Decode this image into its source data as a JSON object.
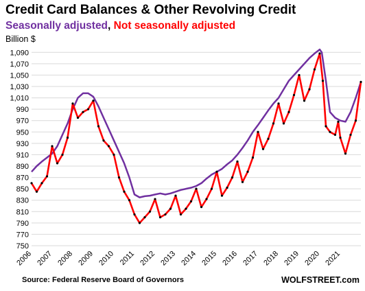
{
  "chart_data": {
    "type": "line",
    "title": "Credit Card Balances & Other Revolving Credit",
    "subtitle_parts": [
      {
        "text": "Seasonally adjusted",
        "color": "#7030a0"
      },
      {
        "text": ", ",
        "color": "#000000"
      },
      {
        "text": "Not seasonally adjusted",
        "color": "#ff0000"
      }
    ],
    "ylabel": "Billion $",
    "source": "Source: Federal Reserve Board of Governors",
    "brand": "WOLFSTREET.com",
    "ylim": [
      750,
      1100
    ],
    "xlim": [
      2006.0,
      2022.0
    ],
    "y_ticks": [
      750,
      770,
      790,
      810,
      830,
      850,
      870,
      890,
      910,
      930,
      950,
      970,
      990,
      1010,
      1030,
      1050,
      1070,
      1090
    ],
    "y_tick_labels": [
      "750",
      "770",
      "790",
      "810",
      "830",
      "850",
      "870",
      "890",
      "910",
      "930",
      "950",
      "970",
      "990",
      "1,010",
      "1,030",
      "1,050",
      "1,070",
      "1,090"
    ],
    "x_ticks": [
      "2006",
      "2007",
      "2008",
      "2009",
      "2010",
      "2011",
      "2012",
      "2013",
      "2014",
      "2015",
      "2016",
      "2017",
      "2018",
      "2019",
      "2020",
      "2021"
    ],
    "grid": "horizontal",
    "series": [
      {
        "name": "Seasonally adjusted",
        "color": "#7030a0",
        "points": [
          [
            2006.0,
            880
          ],
          [
            2006.25,
            890
          ],
          [
            2006.5,
            898
          ],
          [
            2006.75,
            905
          ],
          [
            2007.0,
            912
          ],
          [
            2007.25,
            925
          ],
          [
            2007.5,
            945
          ],
          [
            2007.75,
            965
          ],
          [
            2008.0,
            990
          ],
          [
            2008.25,
            1010
          ],
          [
            2008.5,
            1018
          ],
          [
            2008.75,
            1018
          ],
          [
            2009.0,
            1012
          ],
          [
            2009.25,
            995
          ],
          [
            2009.5,
            975
          ],
          [
            2009.75,
            955
          ],
          [
            2010.0,
            935
          ],
          [
            2010.25,
            915
          ],
          [
            2010.5,
            895
          ],
          [
            2010.75,
            870
          ],
          [
            2011.0,
            840
          ],
          [
            2011.25,
            835
          ],
          [
            2011.5,
            837
          ],
          [
            2011.75,
            838
          ],
          [
            2012.0,
            840
          ],
          [
            2012.25,
            842
          ],
          [
            2012.5,
            840
          ],
          [
            2012.75,
            842
          ],
          [
            2013.0,
            845
          ],
          [
            2013.25,
            848
          ],
          [
            2013.5,
            850
          ],
          [
            2013.75,
            852
          ],
          [
            2014.0,
            855
          ],
          [
            2014.25,
            860
          ],
          [
            2014.5,
            868
          ],
          [
            2014.75,
            875
          ],
          [
            2015.0,
            880
          ],
          [
            2015.25,
            885
          ],
          [
            2015.5,
            893
          ],
          [
            2015.75,
            900
          ],
          [
            2016.0,
            910
          ],
          [
            2016.25,
            922
          ],
          [
            2016.5,
            935
          ],
          [
            2016.75,
            950
          ],
          [
            2017.0,
            962
          ],
          [
            2017.25,
            975
          ],
          [
            2017.5,
            988
          ],
          [
            2017.75,
            1000
          ],
          [
            2018.0,
            1010
          ],
          [
            2018.25,
            1025
          ],
          [
            2018.5,
            1040
          ],
          [
            2018.75,
            1050
          ],
          [
            2019.0,
            1060
          ],
          [
            2019.25,
            1070
          ],
          [
            2019.5,
            1080
          ],
          [
            2019.75,
            1088
          ],
          [
            2020.0,
            1095
          ],
          [
            2020.1,
            1090
          ],
          [
            2020.3,
            1040
          ],
          [
            2020.5,
            985
          ],
          [
            2020.75,
            975
          ],
          [
            2021.0,
            970
          ],
          [
            2021.25,
            968
          ],
          [
            2021.5,
            985
          ],
          [
            2021.75,
            1010
          ],
          [
            2022.0,
            1038
          ]
        ]
      },
      {
        "name": "Not seasonally adjusted",
        "color": "#ff0000",
        "points": [
          [
            2006.0,
            860
          ],
          [
            2006.25,
            845
          ],
          [
            2006.5,
            860
          ],
          [
            2006.75,
            872
          ],
          [
            2007.0,
            925
          ],
          [
            2007.25,
            895
          ],
          [
            2007.5,
            910
          ],
          [
            2007.75,
            940
          ],
          [
            2008.0,
            1000
          ],
          [
            2008.25,
            975
          ],
          [
            2008.5,
            985
          ],
          [
            2008.75,
            990
          ],
          [
            2009.0,
            1005
          ],
          [
            2009.25,
            960
          ],
          [
            2009.5,
            935
          ],
          [
            2009.75,
            925
          ],
          [
            2010.0,
            910
          ],
          [
            2010.25,
            870
          ],
          [
            2010.5,
            845
          ],
          [
            2010.75,
            830
          ],
          [
            2011.0,
            805
          ],
          [
            2011.25,
            790
          ],
          [
            2011.5,
            800
          ],
          [
            2011.75,
            810
          ],
          [
            2012.0,
            832
          ],
          [
            2012.25,
            800
          ],
          [
            2012.5,
            805
          ],
          [
            2012.75,
            815
          ],
          [
            2013.0,
            838
          ],
          [
            2013.25,
            805
          ],
          [
            2013.5,
            815
          ],
          [
            2013.75,
            828
          ],
          [
            2014.0,
            850
          ],
          [
            2014.25,
            818
          ],
          [
            2014.5,
            832
          ],
          [
            2014.75,
            850
          ],
          [
            2015.0,
            880
          ],
          [
            2015.25,
            838
          ],
          [
            2015.5,
            852
          ],
          [
            2015.75,
            870
          ],
          [
            2016.0,
            898
          ],
          [
            2016.25,
            862
          ],
          [
            2016.5,
            880
          ],
          [
            2016.75,
            905
          ],
          [
            2017.0,
            950
          ],
          [
            2017.25,
            920
          ],
          [
            2017.5,
            938
          ],
          [
            2017.75,
            965
          ],
          [
            2018.0,
            1000
          ],
          [
            2018.25,
            965
          ],
          [
            2018.5,
            985
          ],
          [
            2018.75,
            1015
          ],
          [
            2019.0,
            1050
          ],
          [
            2019.25,
            1005
          ],
          [
            2019.5,
            1025
          ],
          [
            2019.75,
            1060
          ],
          [
            2020.0,
            1088
          ],
          [
            2020.15,
            1040
          ],
          [
            2020.3,
            960
          ],
          [
            2020.5,
            950
          ],
          [
            2020.75,
            945
          ],
          [
            2020.9,
            968
          ],
          [
            2021.0,
            940
          ],
          [
            2021.25,
            912
          ],
          [
            2021.5,
            945
          ],
          [
            2021.75,
            970
          ],
          [
            2022.0,
            1038
          ]
        ]
      }
    ]
  }
}
